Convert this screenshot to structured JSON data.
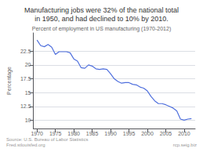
{
  "chart_data": {
    "type": "line",
    "title": "Manufacturing jobs were 32% of the national total\nin 1950, and had declined to 10% by 2010.",
    "subtitle": "Percent of employment in US manufacturing (1970-2012)",
    "ylabel": "Percentage",
    "annotations": [
      "Source: U.S. Bureau of Labor Statistics\nFred.stlouisfed.org",
      "rcp.seig.biz"
    ],
    "x": [
      1970,
      1971,
      1972,
      1973,
      1974,
      1975,
      1976,
      1977,
      1978,
      1979,
      1980,
      1981,
      1982,
      1983,
      1984,
      1985,
      1986,
      1987,
      1988,
      1989,
      1990,
      1991,
      1992,
      1993,
      1994,
      1995,
      1996,
      1997,
      1998,
      1999,
      2000,
      2001,
      2002,
      2003,
      2004,
      2005,
      2006,
      2007,
      2008,
      2009,
      2010,
      2011,
      2012
    ],
    "values": [
      24.5,
      23.5,
      23.3,
      23.7,
      23.2,
      21.9,
      22.4,
      22.4,
      22.4,
      22.2,
      21.1,
      20.7,
      19.5,
      19.4,
      20.0,
      19.8,
      19.3,
      19.2,
      19.3,
      19.2,
      18.4,
      17.5,
      17.0,
      16.7,
      16.8,
      16.8,
      16.5,
      16.4,
      16.0,
      15.8,
      15.3,
      14.3,
      13.5,
      13.0,
      13.0,
      12.8,
      12.5,
      12.2,
      11.7,
      10.2,
      10.0,
      10.2,
      10.3
    ],
    "xlim": [
      1969,
      2013
    ],
    "xticks": [
      1970,
      1975,
      1980,
      1985,
      1990,
      1995,
      2000,
      2005,
      2010
    ],
    "ylim": [
      8.5,
      25.8
    ],
    "yticks": [
      10,
      12.5,
      15,
      17.5,
      20,
      22.5
    ],
    "grid": true
  }
}
